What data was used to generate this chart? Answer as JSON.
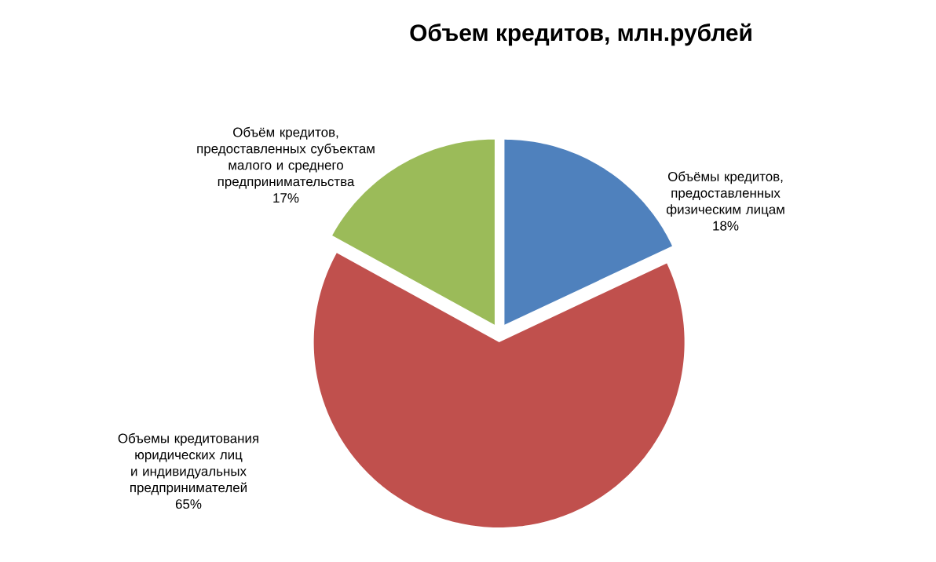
{
  "chart_data": {
    "type": "pie",
    "title": "Объем кредитов, млн.рублей",
    "categories": [
      "Объёмы кредитов, предоставленных физическим лицам",
      "Объемы кредитования юридических лиц и индивидуальных предпринимателей",
      "Объём кредитов, предоставленных субъектам малого и среднего предпринимательства"
    ],
    "values": [
      18,
      65,
      17
    ],
    "value_labels": [
      "18%",
      "65%",
      "17%"
    ],
    "colors": [
      "#4f81bd",
      "#c0504d",
      "#9bbb59"
    ]
  }
}
